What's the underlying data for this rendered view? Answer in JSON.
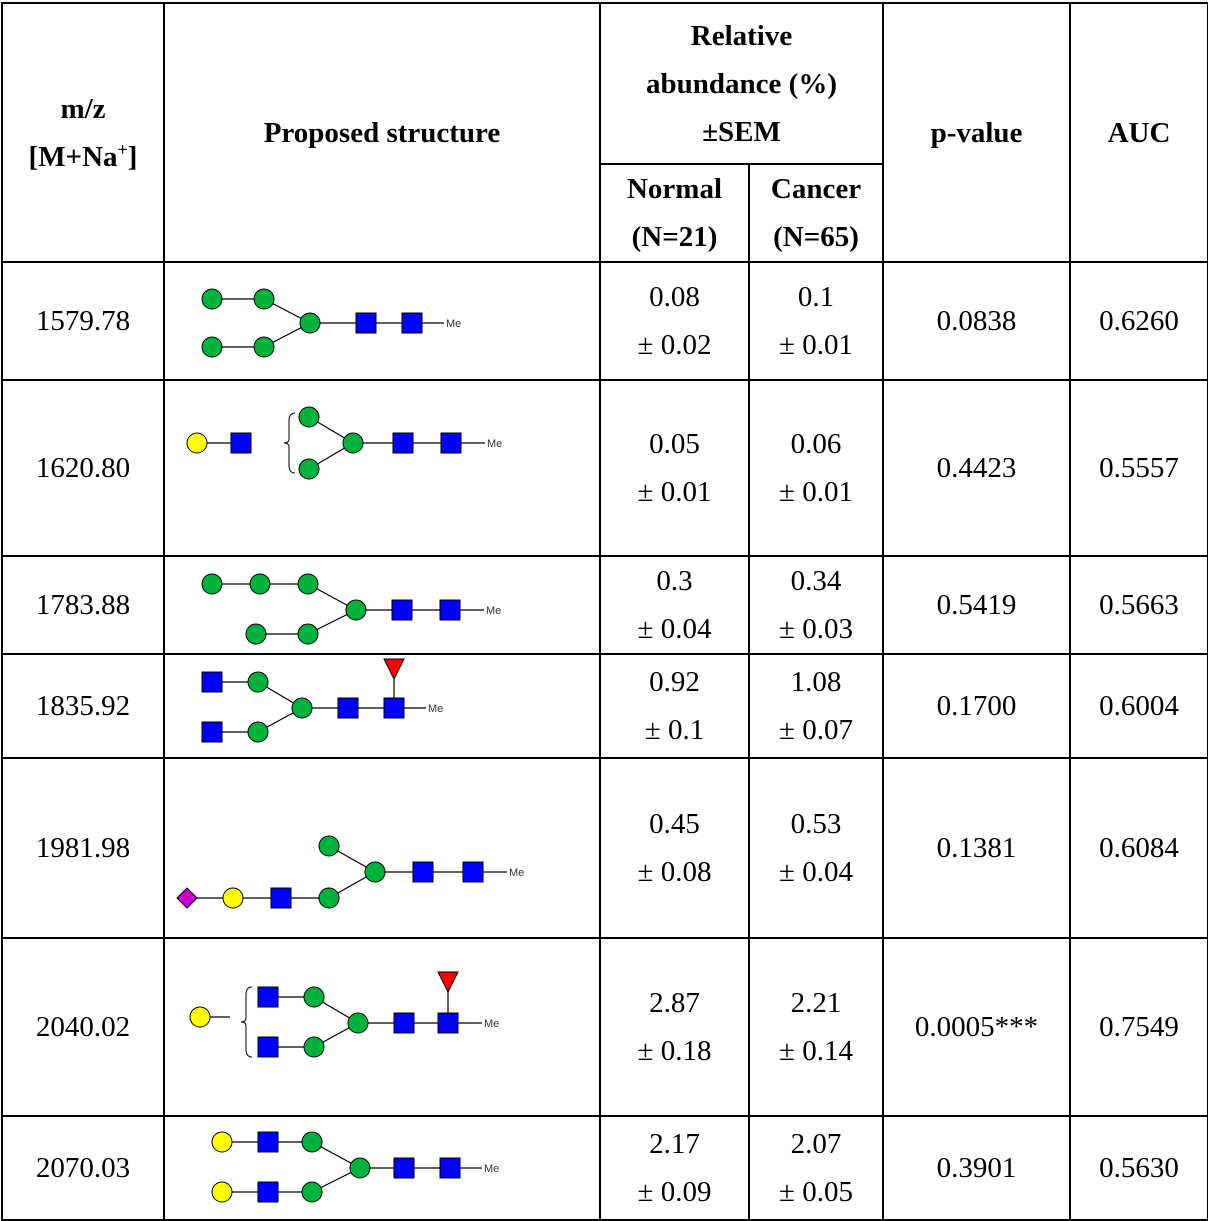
{
  "header": {
    "mz_line1": "m/z",
    "mz_line2": "[M+Na",
    "mz_sup": "+",
    "mz_close": "]",
    "structure": "Proposed structure",
    "abundance": "Relative abundance (%) ±SEM",
    "normal_line1": "Normal",
    "normal_line2": "(N=21)",
    "cancer_line1": "Cancer",
    "cancer_line2": "(N=65)",
    "pvalue": "p-value",
    "auc": "AUC"
  },
  "me_label": "Me",
  "symbol_colors": {
    "mannose": "#00b33c",
    "glcnac": "#0000ff",
    "galactose": "#ffff00",
    "fucose": "#ff0000",
    "sialic_acid": "#cc00cc"
  },
  "rows": [
    {
      "mz": "1579.78",
      "normal_mean": "0.08",
      "normal_sem": "± 0.02",
      "cancer_mean": "0.1",
      "cancer_sem": "± 0.01",
      "pvalue": "0.0838",
      "auc": "0.6260"
    },
    {
      "mz": "1620.80",
      "normal_mean": "0.05",
      "normal_sem": "± 0.01",
      "cancer_mean": "0.06",
      "cancer_sem": "± 0.01",
      "pvalue": "0.4423",
      "auc": "0.5557"
    },
    {
      "mz": "1783.88",
      "normal_mean": "0.3",
      "normal_sem": "± 0.04",
      "cancer_mean": "0.34",
      "cancer_sem": "± 0.03",
      "pvalue": "0.5419",
      "auc": "0.5663"
    },
    {
      "mz": "1835.92",
      "normal_mean": "0.92",
      "normal_sem": "± 0.1",
      "cancer_mean": "1.08",
      "cancer_sem": "± 0.07",
      "pvalue": "0.1700",
      "auc": "0.6004"
    },
    {
      "mz": "1981.98",
      "normal_mean": "0.45",
      "normal_sem": "± 0.08",
      "cancer_mean": "0.53",
      "cancer_sem": "± 0.04",
      "pvalue": "0.1381",
      "auc": "0.6084"
    },
    {
      "mz": "2040.02",
      "normal_mean": "2.87",
      "normal_sem": "± 0.18",
      "cancer_mean": "2.21",
      "cancer_sem": "± 0.14",
      "pvalue": "0.0005***",
      "auc": "0.7549"
    },
    {
      "mz": "2070.03",
      "normal_mean": "2.17",
      "normal_sem": "± 0.09",
      "cancer_mean": "2.07",
      "cancer_sem": "± 0.05",
      "pvalue": "0.3901",
      "auc": "0.5630"
    }
  ]
}
